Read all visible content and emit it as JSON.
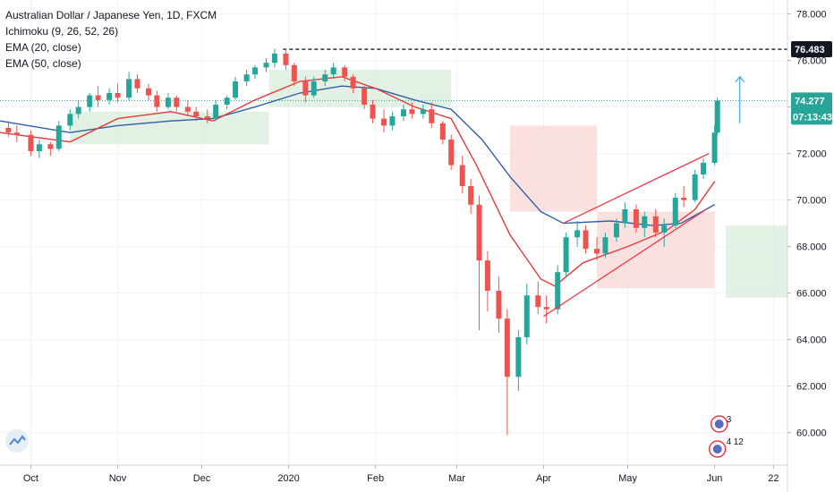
{
  "legend": {
    "title": "Australian Dollar / Japanese Yen, 1D, FXCM",
    "ichimoku": "Ichimoku (9, 26, 52, 26)",
    "ema20": "EMA (20, close)",
    "ema50": "EMA (50, close)"
  },
  "tags": {
    "high_level": "76.483",
    "last_price": "74.277",
    "countdown": "07:13:43"
  },
  "events": {
    "top_count": "3",
    "bottom_count_a": "4",
    "bottom_count_b": "12"
  },
  "colors": {
    "up": "#26a69a",
    "down": "#ef5350",
    "ema20": "#e03c3c",
    "ema50": "#2f5fa3",
    "cloud_bull": "#d8ecd9",
    "cloud_bear": "#f9d6d6",
    "channel": "#f23645",
    "arrow": "#2196f3",
    "last_price_tag": "#26a69a",
    "high_tag": "#131722"
  },
  "chart_data": {
    "type": "candlestick",
    "title": "Australian Dollar / Japanese Yen, 1D, FXCM",
    "y_ticks": [
      "78.000",
      "76.000",
      "74.000",
      "72.000",
      "70.000",
      "68.000",
      "66.000",
      "64.000",
      "62.000",
      "60.000"
    ],
    "ylim": [
      58.6,
      78.6
    ],
    "x_ticks": [
      "Oct",
      "Nov",
      "Dec",
      "2020",
      "Feb",
      "Mar",
      "Apr",
      "May",
      "Jun",
      "22"
    ],
    "x_tick_dates": [
      "2019-10-01",
      "2019-11-01",
      "2019-12-01",
      "2020-01-01",
      "2020-02-01",
      "2020-03-01",
      "2020-04-01",
      "2020-05-01",
      "2020-06-01",
      "2020-06-22"
    ],
    "xlim": [
      "2019-09-20",
      "2020-06-27"
    ],
    "horizontal_lines": [
      {
        "value": 76.483,
        "style": "dashed"
      },
      {
        "value": 74.277,
        "style": "dotted"
      }
    ],
    "channel_lines": [
      {
        "from": [
          "2020-04-08",
          69.0
        ],
        "to": [
          "2020-05-30",
          72.0
        ]
      },
      {
        "from": [
          "2020-04-01",
          65.0
        ],
        "to": [
          "2020-05-29",
          69.6
        ]
      }
    ],
    "arrow_up": {
      "x": "2020-06-10",
      "from": 73.3,
      "to": 75.3
    },
    "ema_20": [
      [
        "2019-09-20",
        72.9
      ],
      [
        "2019-10-15",
        72.5
      ],
      [
        "2019-11-01",
        73.5
      ],
      [
        "2019-11-20",
        73.8
      ],
      [
        "2019-12-05",
        73.4
      ],
      [
        "2019-12-20",
        74.3
      ],
      [
        "2020-01-05",
        75.1
      ],
      [
        "2020-01-20",
        75.3
      ],
      [
        "2020-02-01",
        74.8
      ],
      [
        "2020-02-15",
        74.0
      ],
      [
        "2020-02-28",
        73.5
      ],
      [
        "2020-03-08",
        71.5
      ],
      [
        "2020-03-20",
        68.5
      ],
      [
        "2020-03-31",
        66.6
      ],
      [
        "2020-04-05",
        66.3
      ],
      [
        "2020-04-15",
        67.3
      ],
      [
        "2020-05-01",
        68.0
      ],
      [
        "2020-05-15",
        68.7
      ],
      [
        "2020-05-25",
        69.6
      ],
      [
        "2020-06-01",
        70.8
      ]
    ],
    "ema_50": [
      [
        "2019-09-20",
        73.4
      ],
      [
        "2019-10-15",
        72.9
      ],
      [
        "2019-11-01",
        73.2
      ],
      [
        "2019-11-20",
        73.4
      ],
      [
        "2019-12-05",
        73.5
      ],
      [
        "2019-12-20",
        74.0
      ],
      [
        "2020-01-05",
        74.6
      ],
      [
        "2020-01-20",
        74.9
      ],
      [
        "2020-02-01",
        74.8
      ],
      [
        "2020-02-15",
        74.3
      ],
      [
        "2020-02-28",
        73.9
      ],
      [
        "2020-03-10",
        72.6
      ],
      [
        "2020-03-20",
        71.0
      ],
      [
        "2020-03-31",
        69.5
      ],
      [
        "2020-04-08",
        69.0
      ],
      [
        "2020-04-25",
        69.1
      ],
      [
        "2020-05-10",
        68.9
      ],
      [
        "2020-05-20",
        69.0
      ],
      [
        "2020-06-01",
        69.8
      ]
    ],
    "cloud": [
      {
        "from": "2019-10-15",
        "to": "2019-12-25",
        "top": 73.8,
        "bottom": 72.4,
        "trend": "bull"
      },
      {
        "from": "2019-12-25",
        "to": "2020-02-28",
        "top": 75.6,
        "bottom": 74.0,
        "trend": "bull"
      },
      {
        "from": "2020-03-20",
        "to": "2020-04-20",
        "top": 73.2,
        "bottom": 69.5,
        "trend": "bear"
      },
      {
        "from": "2020-04-20",
        "to": "2020-06-01",
        "top": 69.5,
        "bottom": 66.2,
        "trend": "bear"
      },
      {
        "from": "2020-06-05",
        "to": "2020-06-27",
        "top": 68.9,
        "bottom": 65.8,
        "trend": "bull"
      }
    ],
    "candles": [
      [
        "2019-09-23",
        73.1,
        73.4,
        72.7,
        72.9
      ],
      [
        "2019-09-26",
        72.9,
        73.2,
        72.5,
        72.8
      ],
      [
        "2019-10-01",
        72.8,
        73.0,
        71.9,
        72.1
      ],
      [
        "2019-10-04",
        72.1,
        72.6,
        71.8,
        72.4
      ],
      [
        "2019-10-08",
        72.4,
        72.5,
        71.9,
        72.2
      ],
      [
        "2019-10-11",
        72.2,
        73.4,
        72.1,
        73.2
      ],
      [
        "2019-10-15",
        73.2,
        73.9,
        73.0,
        73.7
      ],
      [
        "2019-10-18",
        73.7,
        74.3,
        73.5,
        74.0
      ],
      [
        "2019-10-22",
        74.0,
        74.6,
        73.8,
        74.5
      ],
      [
        "2019-10-25",
        74.5,
        74.9,
        74.0,
        74.3
      ],
      [
        "2019-10-29",
        74.3,
        74.8,
        74.1,
        74.6
      ],
      [
        "2019-11-01",
        74.6,
        75.0,
        74.2,
        74.4
      ],
      [
        "2019-11-05",
        74.4,
        75.5,
        74.3,
        75.2
      ],
      [
        "2019-11-08",
        75.2,
        75.4,
        74.6,
        74.8
      ],
      [
        "2019-11-12",
        74.8,
        75.0,
        74.3,
        74.5
      ],
      [
        "2019-11-15",
        74.5,
        74.7,
        73.8,
        74.0
      ],
      [
        "2019-11-19",
        74.0,
        74.6,
        73.9,
        74.4
      ],
      [
        "2019-11-22",
        74.4,
        74.5,
        73.8,
        74.0
      ],
      [
        "2019-11-26",
        74.0,
        74.3,
        73.6,
        73.8
      ],
      [
        "2019-11-29",
        73.8,
        74.0,
        73.4,
        73.6
      ],
      [
        "2019-12-03",
        73.6,
        73.9,
        73.3,
        73.5
      ],
      [
        "2019-12-06",
        73.5,
        74.3,
        73.4,
        74.1
      ],
      [
        "2019-12-10",
        74.1,
        74.5,
        73.9,
        74.4
      ],
      [
        "2019-12-13",
        74.4,
        75.3,
        74.3,
        75.1
      ],
      [
        "2019-12-17",
        75.1,
        75.6,
        74.9,
        75.4
      ],
      [
        "2019-12-20",
        75.4,
        75.8,
        75.2,
        75.7
      ],
      [
        "2019-12-24",
        75.7,
        76.1,
        75.5,
        75.9
      ],
      [
        "2019-12-27",
        75.9,
        76.5,
        75.7,
        76.3
      ],
      [
        "2019-12-31",
        76.3,
        76.5,
        75.6,
        75.8
      ],
      [
        "2020-01-03",
        75.8,
        75.9,
        74.9,
        75.1
      ],
      [
        "2020-01-07",
        75.1,
        75.3,
        74.2,
        74.5
      ],
      [
        "2020-01-10",
        74.5,
        75.3,
        74.4,
        75.1
      ],
      [
        "2020-01-14",
        75.1,
        75.6,
        74.9,
        75.4
      ],
      [
        "2020-01-17",
        75.4,
        75.9,
        75.2,
        75.7
      ],
      [
        "2020-01-21",
        75.7,
        75.8,
        75.1,
        75.3
      ],
      [
        "2020-01-24",
        75.3,
        75.4,
        74.6,
        74.8
      ],
      [
        "2020-01-28",
        74.8,
        74.9,
        73.9,
        74.1
      ],
      [
        "2020-01-31",
        74.1,
        74.3,
        73.3,
        73.5
      ],
      [
        "2020-02-04",
        73.5,
        73.9,
        72.9,
        73.2
      ],
      [
        "2020-02-07",
        73.2,
        73.8,
        73.0,
        73.6
      ],
      [
        "2020-02-11",
        73.6,
        74.1,
        73.4,
        73.9
      ],
      [
        "2020-02-14",
        73.9,
        74.2,
        73.5,
        73.7
      ],
      [
        "2020-02-18",
        73.7,
        74.1,
        73.5,
        73.9
      ],
      [
        "2020-02-21",
        73.9,
        74.2,
        73.1,
        73.3
      ],
      [
        "2020-02-25",
        73.3,
        73.4,
        72.4,
        72.6
      ],
      [
        "2020-02-28",
        72.6,
        72.8,
        71.3,
        71.5
      ],
      [
        "2020-03-03",
        71.5,
        71.9,
        70.3,
        70.6
      ],
      [
        "2020-03-06",
        70.6,
        70.9,
        69.4,
        69.8
      ],
      [
        "2020-03-09",
        69.8,
        70.2,
        64.4,
        67.4
      ],
      [
        "2020-03-12",
        67.4,
        67.8,
        65.2,
        66.1
      ],
      [
        "2020-03-16",
        66.1,
        66.7,
        64.3,
        64.9
      ],
      [
        "2020-03-19",
        64.9,
        65.3,
        59.9,
        62.4
      ],
      [
        "2020-03-23",
        62.4,
        64.4,
        61.8,
        64.1
      ],
      [
        "2020-03-26",
        64.1,
        66.4,
        63.8,
        65.9
      ],
      [
        "2020-03-30",
        65.9,
        66.5,
        65.1,
        65.4
      ],
      [
        "2020-04-02",
        65.4,
        65.9,
        64.7,
        65.3
      ],
      [
        "2020-04-06",
        65.3,
        67.2,
        65.1,
        66.9
      ],
      [
        "2020-04-09",
        66.9,
        68.6,
        66.7,
        68.4
      ],
      [
        "2020-04-13",
        68.4,
        69.1,
        68.0,
        68.7
      ],
      [
        "2020-04-16",
        68.7,
        68.9,
        67.7,
        67.9
      ],
      [
        "2020-04-20",
        67.9,
        68.4,
        67.4,
        67.7
      ],
      [
        "2020-04-23",
        67.7,
        68.6,
        67.5,
        68.4
      ],
      [
        "2020-04-27",
        68.4,
        69.2,
        68.2,
        69.0
      ],
      [
        "2020-04-30",
        69.0,
        69.9,
        68.8,
        69.6
      ],
      [
        "2020-05-04",
        69.6,
        69.8,
        68.6,
        68.8
      ],
      [
        "2020-05-07",
        68.8,
        69.5,
        68.4,
        69.3
      ],
      [
        "2020-05-11",
        69.3,
        69.6,
        68.4,
        68.6
      ],
      [
        "2020-05-14",
        68.6,
        69.2,
        68.0,
        68.9
      ],
      [
        "2020-05-18",
        68.9,
        70.3,
        68.8,
        70.1
      ],
      [
        "2020-05-21",
        70.1,
        70.6,
        69.7,
        70.0
      ],
      [
        "2020-05-25",
        70.0,
        71.3,
        69.9,
        71.1
      ],
      [
        "2020-05-28",
        71.1,
        71.8,
        70.9,
        71.6
      ],
      [
        "2020-06-01",
        71.6,
        73.2,
        71.5,
        72.9
      ],
      [
        "2020-06-02",
        72.9,
        74.4,
        72.8,
        74.277
      ]
    ]
  }
}
